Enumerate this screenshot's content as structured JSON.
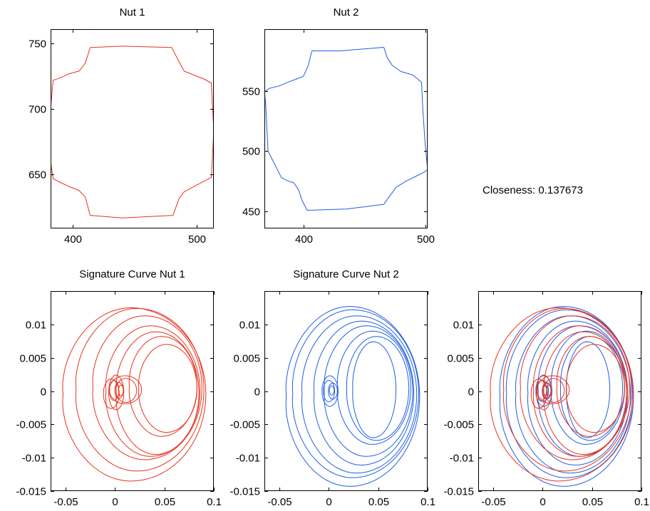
{
  "colors": {
    "nut1": "#e8321e",
    "nut2": "#1f5ee6",
    "axis": "#000000"
  },
  "closeness_text": "Closeness: 0.137673",
  "chart_data": [
    {
      "id": "nut1",
      "type": "line",
      "title": "Nut 1",
      "xlabel": "",
      "ylabel": "",
      "xlim": [
        382,
        514
      ],
      "ylim": [
        609,
        761
      ],
      "xticks": [
        400,
        500
      ],
      "xtick_labels": [
        "400",
        "500"
      ],
      "yticks": [
        650,
        700,
        750
      ],
      "ytick_labels": [
        "650",
        "700",
        "750"
      ],
      "series": [
        {
          "color": "#e8321e",
          "x": [
            414,
            440,
            480,
            486,
            490,
            498,
            506,
            512,
            513,
            514,
            513,
            512,
            506,
            498,
            490,
            486,
            481,
            440,
            414,
            410,
            405,
            397,
            390,
            384,
            382,
            382,
            384,
            390,
            397,
            405,
            410,
            414
          ],
          "y": [
            747,
            748,
            747,
            736,
            729,
            726,
            723,
            720,
            700,
            684,
            666,
            648,
            645,
            641,
            637,
            632,
            619,
            617,
            619,
            633,
            638,
            641,
            644,
            647,
            660,
            700,
            722,
            724,
            727,
            729,
            735,
            747
          ]
        }
      ]
    },
    {
      "id": "nut2",
      "type": "line",
      "title": "Nut 2",
      "xlabel": "",
      "ylabel": "",
      "xlim": [
        368,
        502
      ],
      "ylim": [
        436,
        601
      ],
      "xticks": [
        400,
        500
      ],
      "xtick_labels": [
        "400",
        "500"
      ],
      "yticks": [
        450,
        500,
        550
      ],
      "ytick_labels": [
        "450",
        "500",
        "550"
      ],
      "series": [
        {
          "color": "#1f5ee6",
          "x": [
            407,
            430,
            466,
            469,
            473,
            480,
            490,
            497,
            498,
            500,
            502,
            500,
            492,
            484,
            476,
            471,
            466,
            435,
            403,
            399,
            396,
            392,
            388,
            382,
            377,
            371,
            370,
            369,
            368,
            372,
            380,
            387,
            395,
            400,
            404,
            407
          ],
          "y": [
            583,
            583,
            586,
            577,
            571,
            566,
            563,
            557,
            535,
            505,
            485,
            483,
            479,
            475,
            470,
            463,
            456,
            452,
            451,
            459,
            468,
            474,
            475,
            478,
            488,
            500,
            520,
            540,
            549,
            552,
            554,
            557,
            560,
            562,
            571,
            583
          ]
        }
      ]
    },
    {
      "id": "sig1",
      "type": "line",
      "title": "Signature Curve Nut 1",
      "xlabel": "",
      "ylabel": "",
      "xlim": [
        -0.065,
        0.1
      ],
      "ylim": [
        -0.015,
        0.015
      ],
      "xticks": [
        -0.05,
        0,
        0.05,
        0.1
      ],
      "xtick_labels": [
        "-0.05",
        "0",
        "0.05",
        "0.1"
      ],
      "yticks": [
        -0.015,
        -0.01,
        -0.005,
        0,
        0.005,
        0.01
      ],
      "ytick_labels": [
        "-0.015",
        "-0.01",
        "-0.005",
        "0",
        "0.005",
        "0.01"
      ],
      "loops": [
        {
          "cx": 0.016,
          "cy": -0.0005,
          "rx": 0.076,
          "ry": 0.013,
          "color": "#e8321e"
        },
        {
          "cx": 0.022,
          "cy": 0.0002,
          "rx": 0.068,
          "ry": 0.0122,
          "color": "#e8321e"
        },
        {
          "cx": 0.03,
          "cy": 0.0005,
          "rx": 0.058,
          "ry": 0.0108,
          "color": "#e8321e"
        },
        {
          "cx": 0.036,
          "cy": 0.0,
          "rx": 0.05,
          "ry": 0.0098,
          "color": "#e8321e"
        },
        {
          "cx": 0.041,
          "cy": -0.0003,
          "rx": 0.044,
          "ry": 0.0092,
          "color": "#e8321e"
        },
        {
          "cx": 0.047,
          "cy": 0.0007,
          "rx": 0.036,
          "ry": 0.0075,
          "color": "#e8321e"
        },
        {
          "cx": 0.052,
          "cy": 0.0004,
          "rx": 0.031,
          "ry": 0.0066,
          "color": "#e8321e"
        },
        {
          "cx": 0.01,
          "cy": 0.0002,
          "rx": 0.017,
          "ry": 0.0021,
          "color": "#e8321e"
        },
        {
          "cx": -0.004,
          "cy": -0.0004,
          "rx": 0.0083,
          "ry": 0.0022,
          "color": "#e8321e"
        },
        {
          "cx": 0.001,
          "cy": -0.0002,
          "rx": 0.008,
          "ry": 0.0026,
          "color": "#e8321e"
        },
        {
          "cx": -0.001,
          "cy": 0.0001,
          "rx": 0.005,
          "ry": 0.0015,
          "color": "#e8321e"
        },
        {
          "cx": 0.004,
          "cy": 0.0001,
          "rx": 0.0045,
          "ry": 0.0012,
          "color": "#e8321e"
        },
        {
          "cx": 0.011,
          "cy": 0.0001,
          "rx": 0.011,
          "ry": 0.0018,
          "color": "#e8321e"
        },
        {
          "cx": 0.006,
          "cy": 0.0001,
          "rx": 0.0025,
          "ry": 0.0008,
          "color": "#e8321e"
        }
      ]
    },
    {
      "id": "sig2",
      "type": "line",
      "title": "Signature Curve Nut 2",
      "xlabel": "",
      "ylabel": "",
      "xlim": [
        -0.065,
        0.1
      ],
      "ylim": [
        -0.015,
        0.015
      ],
      "xticks": [
        -0.05,
        0,
        0.05,
        0.1
      ],
      "xtick_labels": [
        "-0.05",
        "0",
        "0.05",
        "0.1"
      ],
      "yticks": [
        -0.015,
        -0.01,
        -0.005,
        0,
        0.005,
        0.01
      ],
      "ytick_labels": [
        "-0.015",
        "-0.01",
        "-0.005",
        "0",
        "0.005",
        "0.01"
      ],
      "loops": [
        {
          "cx": 0.021,
          "cy": -0.0008,
          "rx": 0.071,
          "ry": 0.0135,
          "color": "#1f5ee6"
        },
        {
          "cx": 0.024,
          "cy": -0.0004,
          "rx": 0.067,
          "ry": 0.0126,
          "color": "#1f5ee6"
        },
        {
          "cx": 0.028,
          "cy": -0.0005,
          "rx": 0.061,
          "ry": 0.0118,
          "color": "#1f5ee6"
        },
        {
          "cx": 0.033,
          "cy": -0.0003,
          "rx": 0.053,
          "ry": 0.0108,
          "color": "#1f5ee6"
        },
        {
          "cx": 0.038,
          "cy": 0.0,
          "rx": 0.047,
          "ry": 0.0098,
          "color": "#1f5ee6"
        },
        {
          "cx": 0.044,
          "cy": 0.0005,
          "rx": 0.039,
          "ry": 0.0085,
          "color": "#1f5ee6"
        },
        {
          "cx": 0.048,
          "cy": 0.0004,
          "rx": 0.033,
          "ry": 0.0078,
          "color": "#1f5ee6"
        },
        {
          "cx": 0.045,
          "cy": 0.0002,
          "rx": 0.023,
          "ry": 0.0072,
          "color": "#1f5ee6"
        },
        {
          "cx": 0.0,
          "cy": 0.0,
          "rx": 0.006,
          "ry": 0.0016,
          "color": "#1f5ee6"
        },
        {
          "cx": 0.001,
          "cy": 0.0,
          "rx": 0.0085,
          "ry": 0.0023,
          "color": "#1f5ee6"
        },
        {
          "cx": 0.004,
          "cy": 0.0,
          "rx": 0.0048,
          "ry": 0.0012,
          "color": "#1f5ee6"
        },
        {
          "cx": 0.003,
          "cy": 0.0001,
          "rx": 0.0025,
          "ry": 0.0007,
          "color": "#1f5ee6"
        }
      ]
    },
    {
      "id": "overlay",
      "type": "line",
      "title": "",
      "xlabel": "",
      "ylabel": "",
      "xlim": [
        -0.065,
        0.1
      ],
      "ylim": [
        -0.015,
        0.015
      ],
      "xticks": [
        -0.05,
        0,
        0.05,
        0.1
      ],
      "xtick_labels": [
        "-0.05",
        "0",
        "0.05",
        "0.1"
      ],
      "yticks": [
        -0.015,
        -0.01,
        -0.005,
        0,
        0.005,
        0.01
      ],
      "ytick_labels": [
        "-0.015",
        "-0.01",
        "-0.005",
        "0",
        "0.005",
        "0.01"
      ],
      "overlay_of": [
        "sig2",
        "sig1"
      ]
    }
  ]
}
